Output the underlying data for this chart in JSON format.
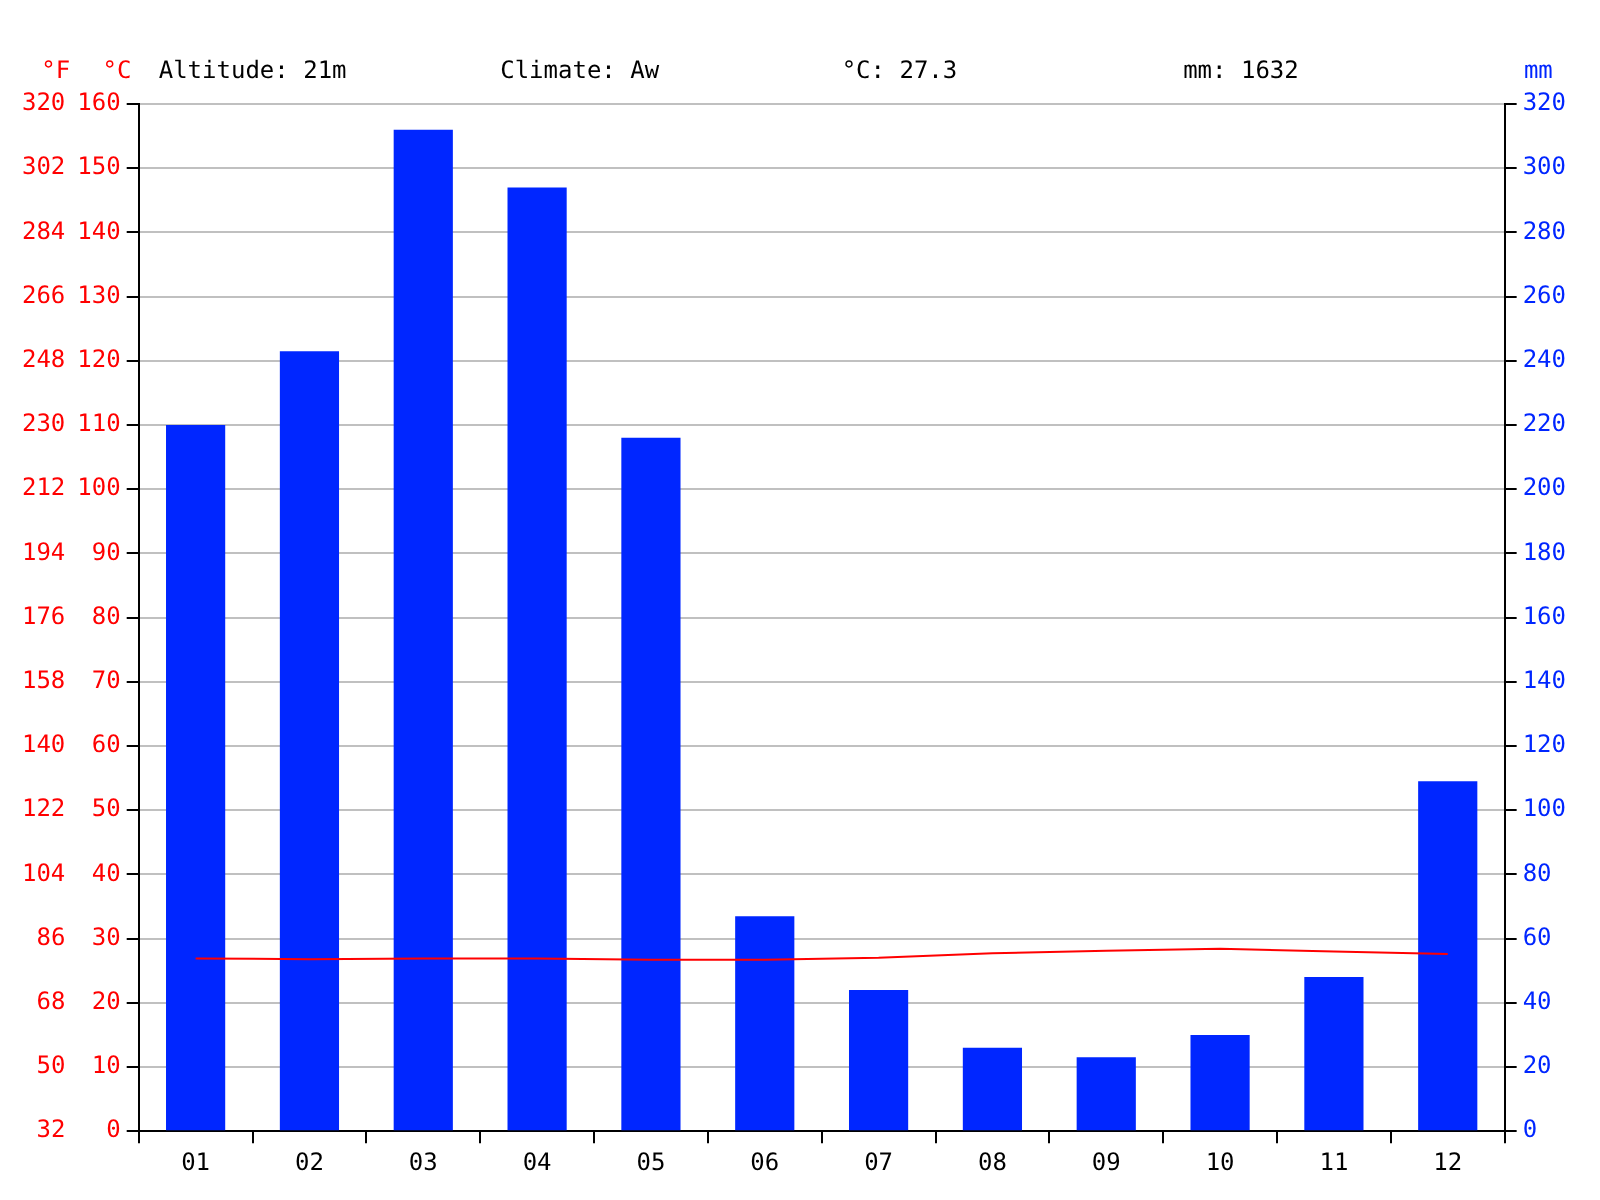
{
  "chart_data": {
    "type": "bar",
    "categories": [
      "01",
      "02",
      "03",
      "04",
      "05",
      "06",
      "07",
      "08",
      "09",
      "10",
      "11",
      "12"
    ],
    "series": [
      {
        "axis": "y2",
        "color": "#0026ff",
        "values": [
          220,
          243,
          312,
          294,
          216,
          67,
          44,
          26,
          23,
          30,
          48,
          109
        ]
      },
      {
        "type": "line",
        "axis": "y",
        "color": "#ff0000",
        "values": [
          26.9,
          26.8,
          26.9,
          26.9,
          26.7,
          26.7,
          27.0,
          27.7,
          28.1,
          28.4,
          28.0,
          27.6
        ]
      }
    ],
    "ylabel": "°C",
    "y2label": "mm",
    "y3label": "°F",
    "ylim": [
      0,
      160
    ],
    "yticks": [
      0,
      10,
      20,
      30,
      40,
      50,
      60,
      70,
      80,
      90,
      100,
      110,
      120,
      130,
      140,
      150,
      160
    ],
    "y2lim": [
      0,
      320
    ],
    "y2ticks": [
      0,
      20,
      40,
      60,
      80,
      100,
      120,
      140,
      160,
      180,
      200,
      220,
      240,
      260,
      280,
      300,
      320
    ],
    "y3lim": [
      32,
      320
    ],
    "y3ticks": [
      32,
      50,
      68,
      86,
      104,
      122,
      140,
      158,
      176,
      194,
      212,
      230,
      248,
      266,
      284,
      302,
      320
    ],
    "annotations": [
      "Altitude: 21m",
      "Climate: Aw",
      "°C: 27.3",
      "mm: 1632"
    ],
    "grid": "y",
    "legend": false,
    "marker": "none"
  }
}
